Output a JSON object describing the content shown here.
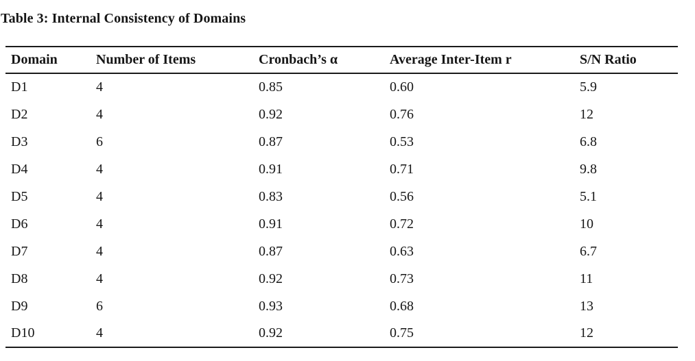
{
  "document": {
    "title": "Table 3: Internal Consistency of Domains"
  },
  "table": {
    "columns": [
      "Domain",
      "Number of Items",
      "Cronbach’s α",
      "Average Inter-Item r",
      "S/N Ratio"
    ],
    "rows": [
      [
        "D1",
        "4",
        "0.85",
        "0.60",
        "5.9"
      ],
      [
        "D2",
        "4",
        "0.92",
        "0.76",
        "12"
      ],
      [
        "D3",
        "6",
        "0.87",
        "0.53",
        "6.8"
      ],
      [
        "D4",
        "4",
        "0.91",
        "0.71",
        "9.8"
      ],
      [
        "D5",
        "4",
        "0.83",
        "0.56",
        "5.1"
      ],
      [
        "D6",
        "4",
        "0.91",
        "0.72",
        "10"
      ],
      [
        "D7",
        "4",
        "0.87",
        "0.63",
        "6.7"
      ],
      [
        "D8",
        "4",
        "0.92",
        "0.73",
        "11"
      ],
      [
        "D9",
        "6",
        "0.93",
        "0.68",
        "13"
      ],
      [
        "D10",
        "4",
        "0.92",
        "0.75",
        "12"
      ]
    ]
  },
  "colors": {
    "background": "#ffffff",
    "text": "#161616",
    "rule": "#1a1a1a"
  }
}
